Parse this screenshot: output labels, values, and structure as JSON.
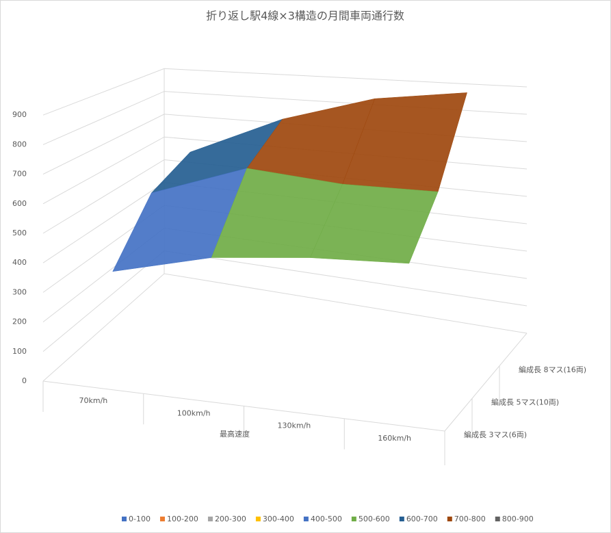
{
  "chart_data": {
    "type": "surface",
    "title": "折り返し駅4線×3構造の月間車両通行数",
    "x_label": "最高速度",
    "categories": [
      "70km/h",
      "100km/h",
      "130km/h",
      "160km/h"
    ],
    "series": [
      {
        "name": "編成長 3マス(6両)",
        "values": [
          340,
          420,
          450,
          460
        ]
      },
      {
        "name": "編成長 5マス(10両)",
        "values": [
          530,
          650,
          620,
          620
        ]
      },
      {
        "name": "編成長 8マス(16両)",
        "values": [
          600,
          760,
          860,
          900
        ]
      }
    ],
    "ylim": [
      0,
      900
    ],
    "yticks": [
      0,
      100,
      200,
      300,
      400,
      500,
      600,
      700,
      800,
      900
    ],
    "grid": true,
    "legend": [
      {
        "name": "0-100",
        "color": "#4472c4"
      },
      {
        "name": "100-200",
        "color": "#ed7d31"
      },
      {
        "name": "200-300",
        "color": "#a5a5a5"
      },
      {
        "name": "300-400",
        "color": "#ffc000"
      },
      {
        "name": "400-500",
        "color": "#4472c4"
      },
      {
        "name": "500-600",
        "color": "#70ad47"
      },
      {
        "name": "600-700",
        "color": "#255e91"
      },
      {
        "name": "700-800",
        "color": "#9e480e"
      },
      {
        "name": "800-900",
        "color": "#636363"
      }
    ]
  }
}
